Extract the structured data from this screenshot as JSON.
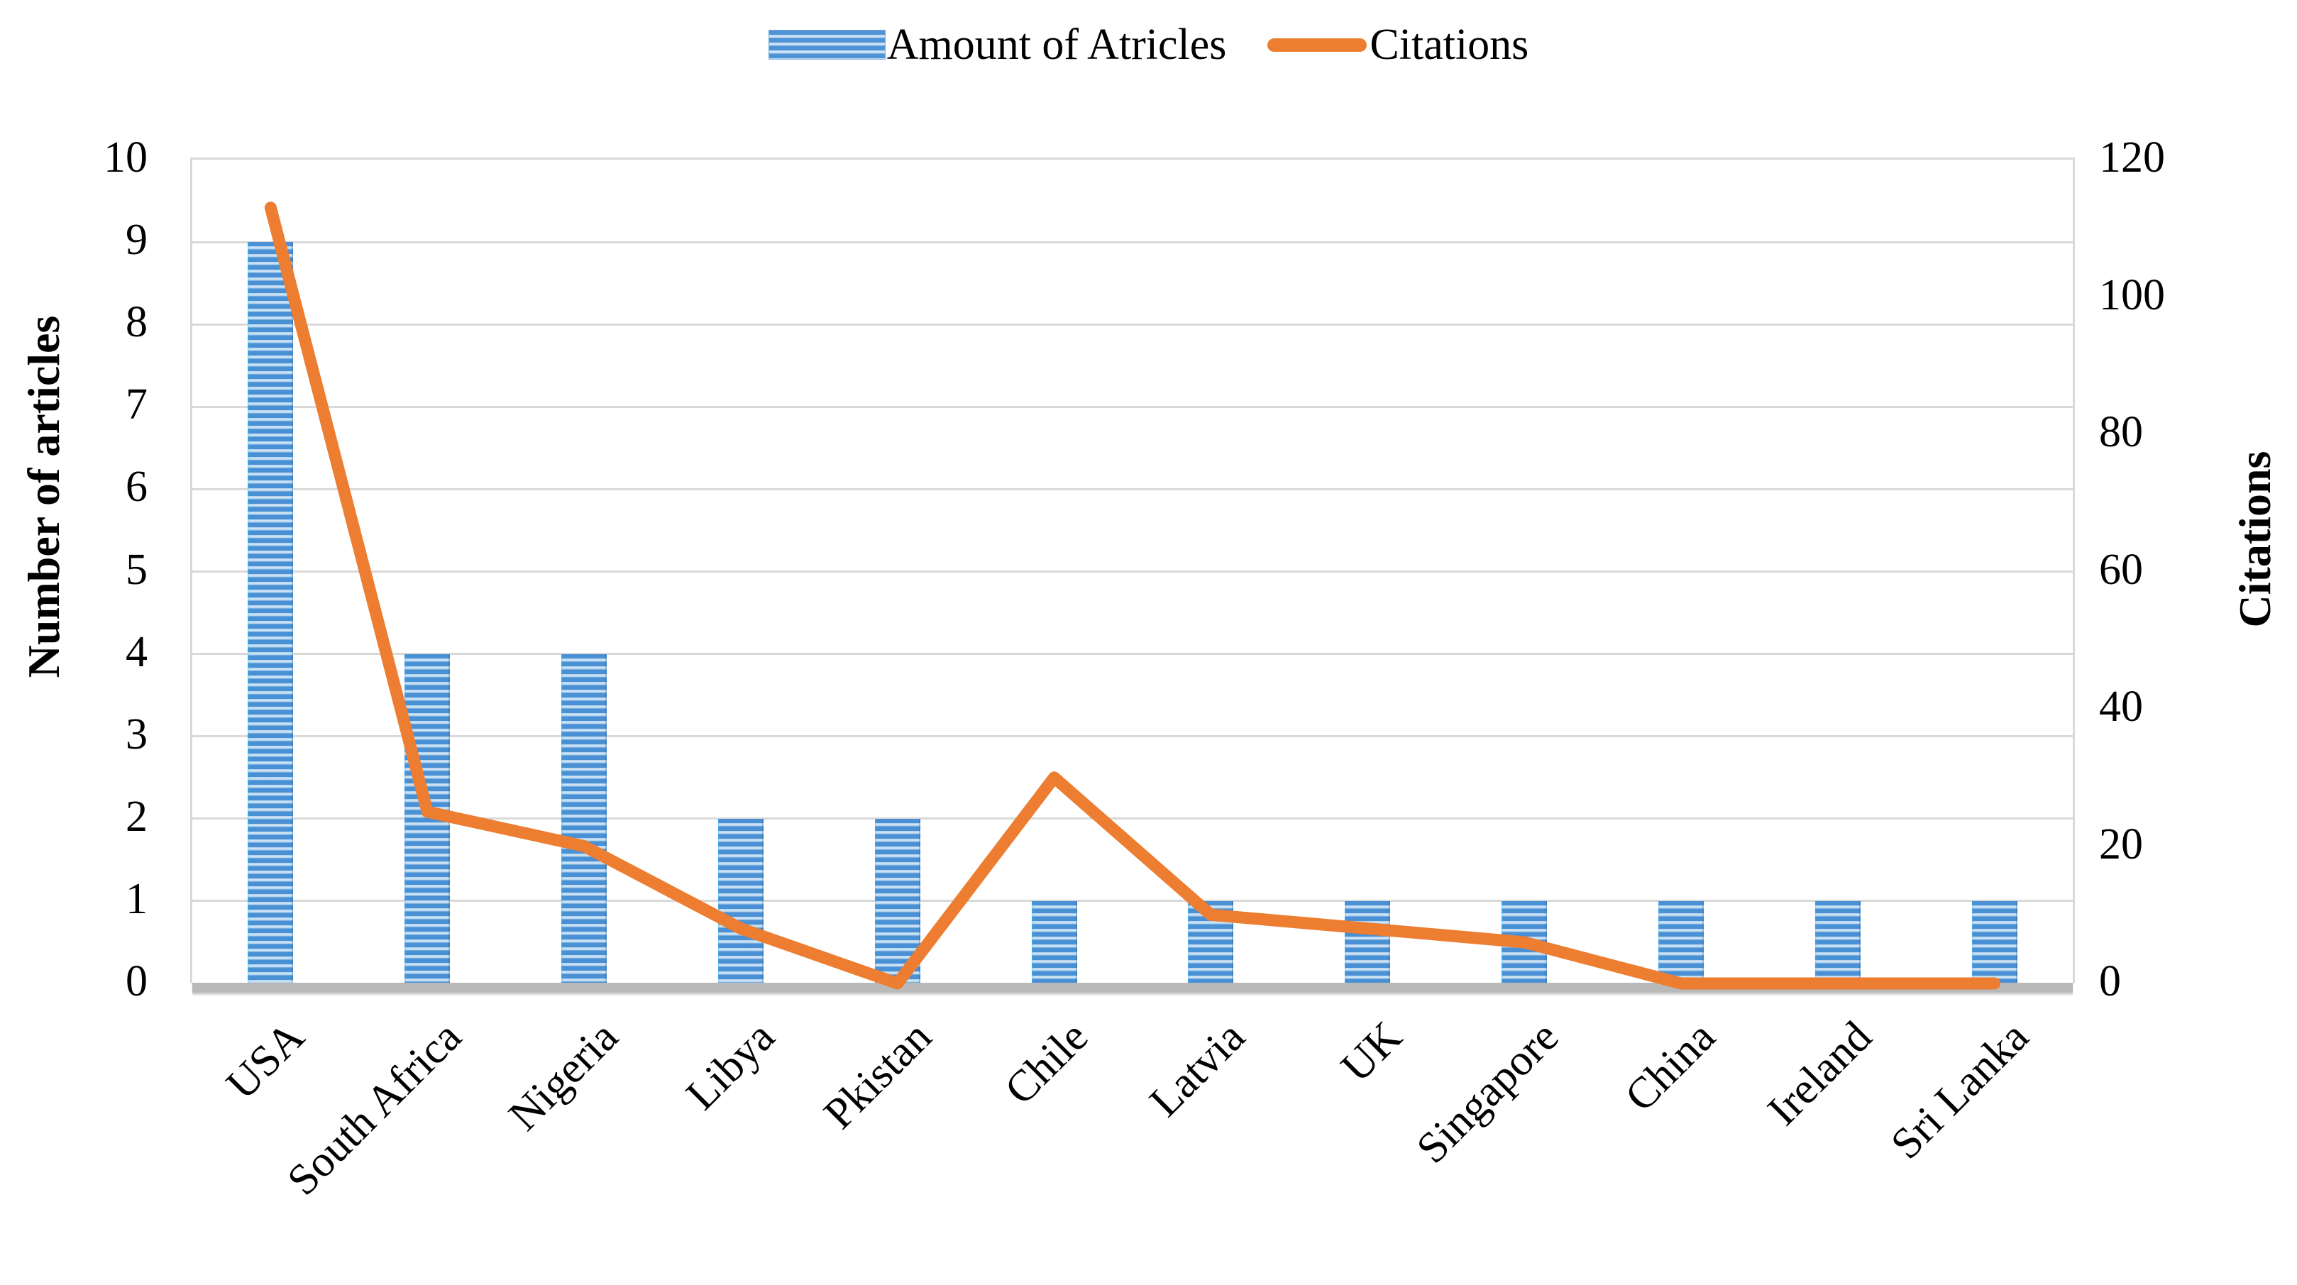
{
  "figure": {
    "background": "#ffffff",
    "grid_color": "#d9d9d9",
    "axis_band_color": "#b9b9b9"
  },
  "chart_data": {
    "type": "combo",
    "categories": [
      "USA",
      "South Africa",
      "Nigeria",
      "Libya",
      "Pkistan",
      "Chile",
      "Latvia",
      "UK",
      "Singapore",
      "China",
      "Ireland",
      "Sri Lanka"
    ],
    "series": [
      {
        "name": "Amount of Atricles",
        "type": "bar",
        "axis": "left",
        "color": "#5B9BD5",
        "stripe_light_color": "#D8E8F7",
        "values": [
          9,
          4,
          4,
          2,
          2,
          1,
          1,
          1,
          1,
          1,
          1,
          1
        ]
      },
      {
        "name": "Citations",
        "type": "line",
        "axis": "right",
        "color": "#ED7D31",
        "values": [
          113,
          25,
          20,
          8,
          0,
          30,
          10,
          8,
          6,
          0,
          0,
          0
        ]
      }
    ],
    "left_axis": {
      "label": "Number of articles",
      "min": 0,
      "max": 10,
      "tick_step": 1,
      "ticks": [
        "0",
        "1",
        "2",
        "3",
        "4",
        "5",
        "6",
        "7",
        "8",
        "9",
        "10"
      ]
    },
    "right_axis": {
      "label": "Citations",
      "min": 0,
      "max": 120,
      "tick_step": 20,
      "ticks": [
        "0",
        "20",
        "40",
        "60",
        "80",
        "100",
        "120"
      ]
    },
    "legend": {
      "position": "top",
      "items": [
        "Amount of Atricles",
        "Citations"
      ]
    },
    "grid": true
  }
}
